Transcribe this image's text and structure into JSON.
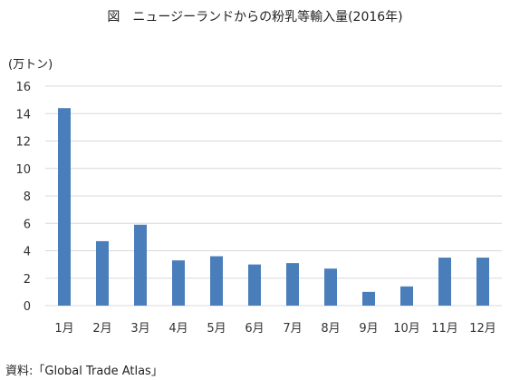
{
  "page": {
    "title": "図　ニュージーランドからの粉乳等輸入量(2016年)",
    "y_unit": "(万トン)",
    "source": "資料:「Global Trade Atlas」"
  },
  "chart_data": {
    "type": "bar",
    "title": "図　ニュージーランドからの粉乳等輸入量(2016年)",
    "ylabel": "(万トン)",
    "xlabel": "",
    "categories": [
      "1月",
      "2月",
      "3月",
      "4月",
      "5月",
      "6月",
      "7月",
      "8月",
      "9月",
      "10月",
      "11月",
      "12月"
    ],
    "values": [
      14.4,
      4.7,
      5.9,
      3.3,
      3.6,
      3.0,
      3.1,
      2.7,
      1.0,
      1.4,
      3.5,
      3.5
    ],
    "yticks": [
      "0",
      "2",
      "4",
      "6",
      "8",
      "10",
      "12",
      "14",
      "16"
    ],
    "ylim": [
      0,
      16
    ],
    "grid": true,
    "legend": "none",
    "bar_color": "#4A7EBB",
    "grid_color": "#D9D9D9"
  }
}
